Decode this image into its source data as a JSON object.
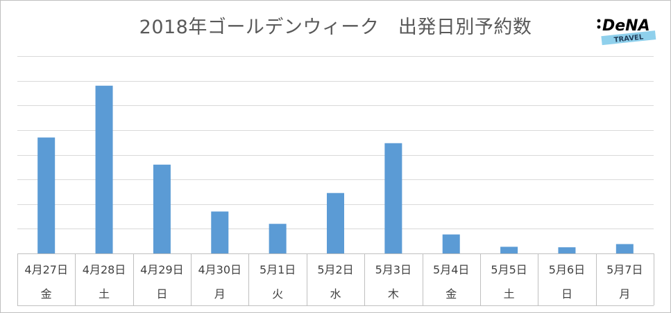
{
  "chart_data": {
    "type": "bar",
    "title": "2018年ゴールデンウィーク　出発日別予約数",
    "categories": [
      "4月27日",
      "4月28日",
      "4月29日",
      "4月30日",
      "5月1日",
      "5月2日",
      "5月3日",
      "5月4日",
      "5月5日",
      "5月6日",
      "5月7日"
    ],
    "weekdays": [
      "金",
      "土",
      "日",
      "月",
      "火",
      "水",
      "木",
      "金",
      "土",
      "日",
      "月"
    ],
    "values": [
      47,
      68,
      36,
      17,
      12,
      24.5,
      44.7,
      7.7,
      2.7,
      2.5,
      3.8
    ],
    "ylim": [
      0,
      80
    ],
    "gridlines": 9,
    "grid": true,
    "bar_color": "#5b9bd5",
    "grid_color": "#d9d9d9",
    "xlabel": "",
    "ylabel": ""
  },
  "logo": {
    "brand": "DeNA",
    "sub": "TRAVEL",
    "brand_color": "#000000",
    "band_color": "#8fd0ec"
  }
}
